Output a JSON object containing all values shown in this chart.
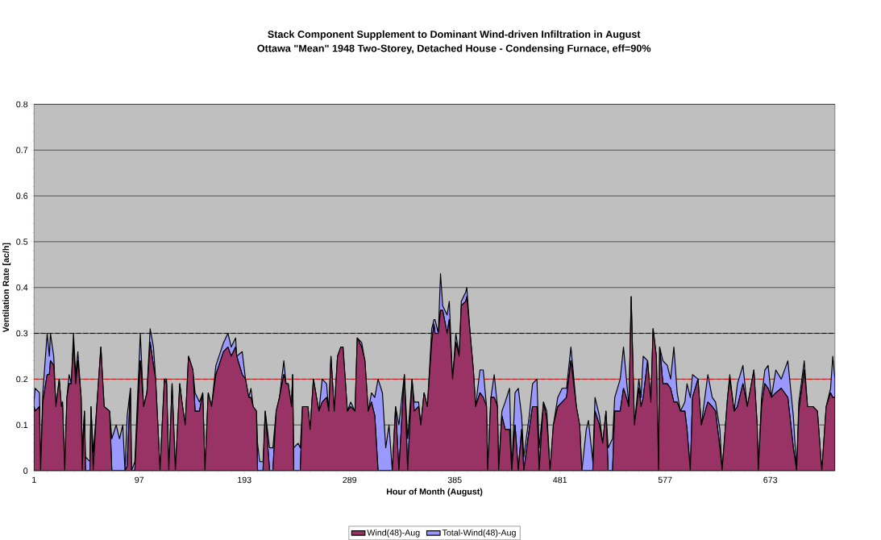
{
  "chart_data": {
    "type": "area",
    "title": "Stack Component Supplement to Dominant Wind-driven Infiltration in August",
    "subtitle": "Ottawa \"Mean\" 1948 Two-Storey, Detached House - Condensing Furnace, eff=90%",
    "xlabel": "Hour of Month (August)",
    "ylabel": "Ventilation Rate [ac/h]",
    "x": [
      1,
      2,
      6,
      7,
      9,
      13,
      15,
      16,
      19,
      21,
      24,
      26,
      27,
      29,
      31,
      33,
      35,
      37,
      39,
      41,
      44,
      45,
      47,
      48,
      52,
      53,
      55,
      58,
      62,
      65,
      70,
      72,
      76,
      79,
      82,
      84,
      86,
      89,
      90,
      93,
      98,
      101,
      104,
      107,
      110,
      112,
      116,
      120,
      122,
      124,
      127,
      130,
      134,
      136,
      139,
      142,
      146,
      148,
      152,
      155,
      157,
      160,
      163,
      167,
      174,
      178,
      181,
      185,
      186,
      191,
      194,
      197,
      199,
      201,
      204,
      205,
      207,
      210,
      212,
      216,
      219,
      222,
      225,
      229,
      231,
      233,
      236,
      237,
      238,
      242,
      244,
      246,
      251,
      253,
      256,
      261,
      264,
      268,
      270,
      272,
      275,
      278,
      281,
      283,
      287,
      290,
      294,
      296,
      300,
      303,
      306,
      309,
      312,
      315,
      319,
      322,
      325,
      328,
      331,
      334,
      339,
      342,
      346,
      348,
      352,
      354,
      357,
      360,
      364,
      366,
      367,
      370,
      372,
      374,
      378,
      380,
      383,
      386,
      389,
      391,
      395,
      396,
      399,
      402,
      404,
      408,
      411,
      414,
      415,
      418,
      421,
      424,
      425,
      428,
      431,
      435,
      437,
      440,
      443,
      446,
      448,
      453,
      456,
      460,
      462,
      466,
      469,
      472,
      475,
      479,
      483,
      487,
      491,
      493,
      496,
      499,
      501,
      505,
      507,
      511,
      513,
      517,
      520,
      523,
      525,
      529,
      531,
      536,
      539,
      544,
      546,
      549,
      553,
      555,
      557,
      561,
      564,
      566,
      569,
      571,
      572,
      575,
      579,
      582,
      585,
      588,
      591,
      595,
      597,
      600,
      602,
      607,
      610,
      616,
      620,
      623,
      627,
      629,
      634,
      636,
      640,
      643,
      648,
      652,
      658,
      661,
      662,
      665,
      668,
      671,
      674,
      678,
      683,
      689,
      694,
      697,
      699,
      704,
      707,
      712,
      716,
      720,
      724,
      728,
      730,
      732
    ],
    "series": [
      {
        "name": "Wind(48)-Aug",
        "color": "#993366",
        "values": [
          0.14,
          0.13,
          0.14,
          0,
          0.15,
          0.21,
          0.21,
          0.24,
          0.23,
          0.14,
          0.2,
          0.14,
          0.15,
          0,
          0.16,
          0.19,
          0.19,
          0.28,
          0.19,
          0.24,
          0.16,
          0,
          0.13,
          0,
          0,
          0.14,
          0,
          0.13,
          0.27,
          0.14,
          0.13,
          0,
          0,
          0,
          0,
          0,
          0.01,
          0.18,
          0,
          0,
          0.24,
          0.14,
          0.17,
          0.28,
          0.23,
          0.2,
          0,
          0.2,
          0.19,
          0,
          0.19,
          0,
          0.19,
          0.15,
          0.1,
          0.25,
          0.22,
          0.13,
          0.13,
          0.17,
          0,
          0.17,
          0.14,
          0.21,
          0.26,
          0.27,
          0.25,
          0.27,
          0.25,
          0.21,
          0.2,
          0.16,
          0.16,
          0.14,
          0.13,
          0,
          0,
          0,
          0.13,
          0,
          0,
          0.13,
          0.16,
          0.21,
          0.19,
          0.19,
          0.14,
          0.21,
          0,
          0,
          0,
          0.14,
          0.14,
          0.09,
          0.2,
          0.13,
          0.15,
          0.16,
          0.13,
          0.25,
          0.13,
          0.25,
          0.27,
          0.27,
          0.13,
          0.14,
          0.13,
          0.29,
          0.27,
          0.24,
          0.13,
          0.15,
          0.12,
          0,
          0,
          0,
          0,
          0,
          0.14,
          0,
          0.21,
          0,
          0.2,
          0.13,
          0.14,
          0.1,
          0.17,
          0.14,
          0.28,
          0.32,
          0.3,
          0.3,
          0.35,
          0.35,
          0.3,
          0.33,
          0.2,
          0.28,
          0.25,
          0.36,
          0.37,
          0.38,
          0.3,
          0.22,
          0.14,
          0.17,
          0.16,
          0.14,
          0,
          0.16,
          0.16,
          0.14,
          0,
          0.12,
          0.09,
          0.09,
          0,
          0.1,
          0,
          0.09,
          0,
          0.09,
          0.14,
          0.14,
          0,
          0.15,
          0.11,
          0,
          0.1,
          0.14,
          0.15,
          0.16,
          0.24,
          0.2,
          0.14,
          0.1,
          0,
          0,
          0,
          0,
          0.13,
          0.1,
          0.06,
          0.13,
          0,
          0,
          0.13,
          0.13,
          0.18,
          0.14,
          0.38,
          0.1,
          0.18,
          0.14,
          0.16,
          0.24,
          0.15,
          0.31,
          0.25,
          0,
          0.27,
          0.19,
          0.19,
          0.18,
          0.15,
          0.15,
          0.13,
          0.13,
          0.09,
          0,
          0.16,
          0.2,
          0.1,
          0.15,
          0.14,
          0.13,
          0.05,
          0,
          0.16,
          0.2,
          0.13,
          0.14,
          0.19,
          0.14,
          0.22,
          0.1,
          0,
          0.14,
          0.19,
          0.18,
          0.16,
          0.17,
          0.18,
          0.16,
          0.05,
          0,
          0.13,
          0.22,
          0.14,
          0.14,
          0.13,
          0,
          0.14,
          0.17,
          0.16,
          0.16
        ]
      },
      {
        "name": "Total-Wind(48)-Aug",
        "color": "#9999ff",
        "values": [
          0.01,
          0.05,
          0.03,
          0,
          0.02,
          0.09,
          0.04,
          0.06,
          0.02,
          0,
          0,
          0,
          0,
          0,
          0,
          0.02,
          0,
          0.02,
          0.02,
          0.02,
          0,
          0.05,
          0,
          0.03,
          0.02,
          0,
          0.04,
          0,
          0,
          0,
          0,
          0.07,
          0.1,
          0.07,
          0.1,
          0,
          0.11,
          0,
          0,
          0.02,
          0.06,
          0,
          0,
          0.03,
          0.04,
          0,
          0,
          0,
          0.01,
          0,
          0,
          0,
          0,
          0,
          0,
          0,
          0,
          0.04,
          0.02,
          0,
          0,
          0,
          0,
          0.02,
          0.02,
          0.03,
          0.02,
          0.02,
          0,
          0.05,
          0,
          0,
          0.02,
          0,
          0,
          0.06,
          0.02,
          0.02,
          0,
          0.05,
          0.05,
          0,
          0,
          0.03,
          0,
          0,
          0,
          0,
          0.05,
          0.06,
          0.05,
          0,
          0,
          0,
          0,
          0,
          0.05,
          0.03,
          0,
          0,
          0,
          0,
          0,
          0,
          0,
          0.01,
          0,
          0,
          0.01,
          0,
          0,
          0.02,
          0.04,
          0.2,
          0.17,
          0.05,
          0.1,
          0,
          0,
          0.1,
          0,
          0.07,
          0,
          0.02,
          0.01,
          0,
          0,
          0,
          0.03,
          0.01,
          0.03,
          0,
          0.08,
          0.01,
          0.04,
          0.04,
          0,
          0.02,
          0,
          0.01,
          0.02,
          0.02,
          0,
          0,
          0,
          0.05,
          0.06,
          0,
          0,
          0,
          0.05,
          0,
          0,
          0.01,
          0.06,
          0.09,
          0,
          0.07,
          0.18,
          0.03,
          0.03,
          0.03,
          0.05,
          0.06,
          0.05,
          0,
          0.02,
          0,
          0,
          0.02,
          0.03,
          0.02,
          0.03,
          0.02,
          0,
          0,
          0,
          0.09,
          0.11,
          0.02,
          0.03,
          0.02,
          0,
          0,
          0.05,
          0.07,
          0.03,
          0.07,
          0.09,
          0,
          0,
          0,
          0.02,
          0.02,
          0.09,
          0,
          0,
          0,
          0,
          0,
          0,
          0.05,
          0.04,
          0.02,
          0.12,
          0.02,
          0,
          0.02,
          0.1,
          0.16,
          0.05,
          0,
          0,
          0.06,
          0.02,
          0.02,
          0.04,
          0,
          0,
          0.01,
          0,
          0.05,
          0.04,
          0,
          0,
          0,
          0,
          0.02,
          0.03,
          0.05,
          0,
          0.05,
          0.02,
          0.08,
          0.07,
          0,
          0.02,
          0.02,
          0,
          0,
          0,
          0,
          0,
          0.01,
          0.09,
          0.04
        ]
      }
    ],
    "stacked": true,
    "xlim": [
      1,
      732
    ],
    "xticks": [
      1,
      97,
      193,
      289,
      385,
      481,
      577,
      673
    ],
    "ylim": [
      0,
      0.8
    ],
    "yticks": [
      0,
      0.1,
      0.2,
      0.3,
      0.4,
      0.5,
      0.6,
      0.7,
      0.8
    ],
    "grid": "y",
    "legend": "bottom",
    "ref_lines": [
      {
        "axis": "y",
        "value": 0.3,
        "color": "#000000",
        "line_style": "dashed"
      },
      {
        "axis": "y",
        "value": 0.2,
        "color": "#ff0000",
        "line_style": "dashed"
      }
    ]
  }
}
